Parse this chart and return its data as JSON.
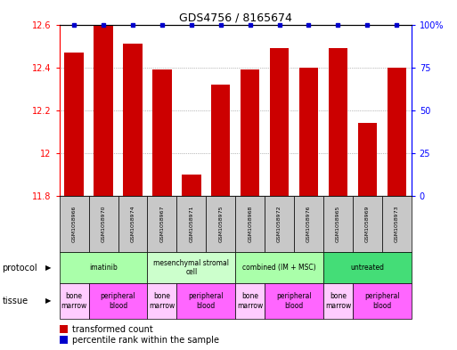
{
  "title": "GDS4756 / 8165674",
  "samples": [
    "GSM1058966",
    "GSM1058970",
    "GSM1058974",
    "GSM1058967",
    "GSM1058971",
    "GSM1058975",
    "GSM1058968",
    "GSM1058972",
    "GSM1058976",
    "GSM1058965",
    "GSM1058969",
    "GSM1058973"
  ],
  "bar_values": [
    12.47,
    12.6,
    12.51,
    12.39,
    11.9,
    12.32,
    12.39,
    12.49,
    12.4,
    12.49,
    12.14,
    12.4
  ],
  "bar_color": "#cc0000",
  "percentile_color": "#0000cc",
  "ylim_left": [
    11.8,
    12.6
  ],
  "ylim_right": [
    0,
    100
  ],
  "yticks_left": [
    11.8,
    12.0,
    12.2,
    12.4,
    12.6
  ],
  "ytick_labels_left": [
    "11.8",
    "12",
    "12.2",
    "12.4",
    "12.6"
  ],
  "yticks_right": [
    0,
    25,
    50,
    75,
    100
  ],
  "ytick_labels_right": [
    "0",
    "25",
    "50",
    "75",
    "100%"
  ],
  "protocols": [
    {
      "label": "imatinib",
      "start": 0,
      "end": 3,
      "color": "#aaffaa"
    },
    {
      "label": "mesenchymal stromal\ncell",
      "start": 3,
      "end": 6,
      "color": "#ccffcc"
    },
    {
      "label": "combined (IM + MSC)",
      "start": 6,
      "end": 9,
      "color": "#aaffaa"
    },
    {
      "label": "untreated",
      "start": 9,
      "end": 12,
      "color": "#44dd77"
    }
  ],
  "tissues": [
    {
      "label": "bone\nmarrow",
      "start": 0,
      "end": 1,
      "color": "#ffccff"
    },
    {
      "label": "peripheral\nblood",
      "start": 1,
      "end": 3,
      "color": "#ff66ff"
    },
    {
      "label": "bone\nmarrow",
      "start": 3,
      "end": 4,
      "color": "#ffccff"
    },
    {
      "label": "peripheral\nblood",
      "start": 4,
      "end": 6,
      "color": "#ff66ff"
    },
    {
      "label": "bone\nmarrow",
      "start": 6,
      "end": 7,
      "color": "#ffccff"
    },
    {
      "label": "peripheral\nblood",
      "start": 7,
      "end": 9,
      "color": "#ff66ff"
    },
    {
      "label": "bone\nmarrow",
      "start": 9,
      "end": 10,
      "color": "#ffccff"
    },
    {
      "label": "peripheral\nblood",
      "start": 10,
      "end": 12,
      "color": "#ff66ff"
    }
  ],
  "legend_items": [
    {
      "label": "transformed count",
      "color": "#cc0000"
    },
    {
      "label": "percentile rank within the sample",
      "color": "#0000cc"
    }
  ],
  "sample_bg_color": "#c8c8c8",
  "fig_width": 5.13,
  "fig_height": 3.93,
  "dpi": 100
}
